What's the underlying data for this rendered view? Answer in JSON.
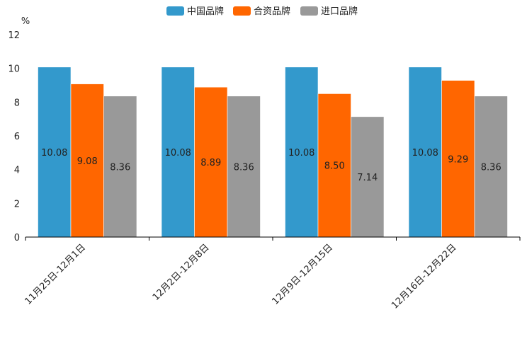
{
  "chart_data": {
    "type": "bar",
    "title": "",
    "ylabel": "%",
    "xlabel": "",
    "ylim": [
      0,
      12
    ],
    "yticks": [
      0,
      2,
      4,
      6,
      8,
      10,
      12
    ],
    "categories": [
      "11月25日-12月1日",
      "12月2日-12月8日",
      "12月9日-12月15日",
      "12月16日-12月22日"
    ],
    "series": [
      {
        "name": "中国品牌",
        "color": "#3399cc",
        "values": [
          10.08,
          10.08,
          10.08,
          10.08
        ]
      },
      {
        "name": "合资品牌",
        "color": "#ff6600",
        "values": [
          9.08,
          8.89,
          8.5,
          9.29
        ]
      },
      {
        "name": "进口品牌",
        "color": "#999999",
        "values": [
          8.36,
          8.36,
          7.14,
          8.36
        ]
      }
    ],
    "legend_position": "top-center",
    "grid": false
  }
}
